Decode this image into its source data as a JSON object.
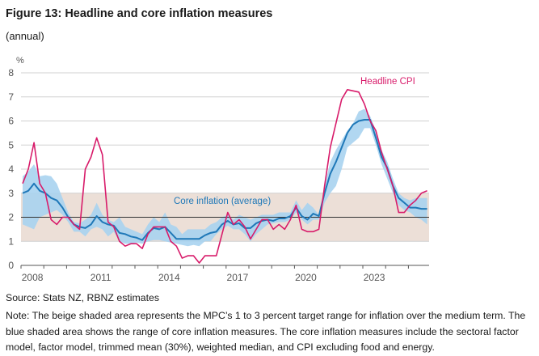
{
  "title": "Figure 13: Headline and core inflation measures",
  "subtitle": "(annual)",
  "source": "Source: Stats NZ, RBNZ estimates",
  "note": "Note: The beige shaded area represents the MPC’s 1 to 3 percent target range for inflation over the medium term. The blue shaded area shows the range of core inflation measures. The core inflation measures include the sectoral factor model, factor model, trimmed mean (30%), weighted median, and CPI excluding food and energy.",
  "colors": {
    "headline": "#d81b6a",
    "core": "#1f78b8",
    "band": "#a8d3ef",
    "target": "#ecdfd7",
    "grid": "#d0d0d0",
    "ref": "#333333"
  },
  "chart_data": {
    "type": "line",
    "ylabel": "%",
    "ylim": [
      0,
      8
    ],
    "yticks": [
      "0",
      "1",
      "2",
      "3",
      "4",
      "5",
      "6",
      "7",
      "8"
    ],
    "xtick_labels": [
      "2008",
      "2011",
      "2014",
      "2017",
      "2020",
      "2023"
    ],
    "xlim": [
      "2008Q1",
      "2025Q4"
    ],
    "grid": true,
    "target_range": [
      1,
      3
    ],
    "reference_line": 2,
    "annotations": {
      "headline": "Headline CPI",
      "core": "Core inflation (average)"
    },
    "x": [
      "2008Q1",
      "2008Q2",
      "2008Q3",
      "2008Q4",
      "2009Q1",
      "2009Q2",
      "2009Q3",
      "2009Q4",
      "2010Q1",
      "2010Q2",
      "2010Q3",
      "2010Q4",
      "2011Q1",
      "2011Q2",
      "2011Q3",
      "2011Q4",
      "2012Q1",
      "2012Q2",
      "2012Q3",
      "2012Q4",
      "2013Q1",
      "2013Q2",
      "2013Q3",
      "2013Q4",
      "2014Q1",
      "2014Q2",
      "2014Q3",
      "2014Q4",
      "2015Q1",
      "2015Q2",
      "2015Q3",
      "2015Q4",
      "2016Q1",
      "2016Q2",
      "2016Q3",
      "2016Q4",
      "2017Q1",
      "2017Q2",
      "2017Q3",
      "2017Q4",
      "2018Q1",
      "2018Q2",
      "2018Q3",
      "2018Q4",
      "2019Q1",
      "2019Q2",
      "2019Q3",
      "2019Q4",
      "2020Q1",
      "2020Q2",
      "2020Q3",
      "2020Q4",
      "2021Q1",
      "2021Q2",
      "2021Q3",
      "2021Q4",
      "2022Q1",
      "2022Q2",
      "2022Q3",
      "2022Q4",
      "2023Q1",
      "2023Q2",
      "2023Q3",
      "2023Q4",
      "2024Q1",
      "2024Q2",
      "2024Q3",
      "2024Q4",
      "2025Q1",
      "2025Q2",
      "2025Q3",
      "2025Q4"
    ],
    "series": [
      {
        "name": "Headline CPI",
        "values": [
          3.4,
          4.0,
          5.1,
          3.4,
          3.0,
          1.9,
          1.7,
          2.0,
          2.0,
          1.7,
          1.5,
          4.0,
          4.5,
          5.3,
          4.6,
          1.8,
          1.6,
          1.0,
          0.8,
          0.9,
          0.9,
          0.7,
          1.3,
          1.6,
          1.6,
          1.6,
          1.0,
          0.8,
          0.3,
          0.4,
          0.4,
          0.1,
          0.4,
          0.4,
          0.4,
          1.3,
          2.2,
          1.7,
          1.9,
          1.6,
          1.1,
          1.5,
          1.9,
          1.9,
          1.5,
          1.7,
          1.5,
          1.9,
          2.5,
          1.5,
          1.4,
          1.4,
          1.5,
          3.3,
          4.9,
          5.9,
          6.9,
          7.3,
          7.25,
          7.2,
          6.7,
          6.0,
          5.6,
          4.7,
          4.0,
          3.3,
          2.2,
          2.2,
          2.5,
          2.7,
          3.0,
          3.1
        ]
      },
      {
        "name": "Core inflation (average)",
        "values": [
          3.0,
          3.1,
          3.4,
          3.1,
          3.0,
          2.8,
          2.7,
          2.4,
          2.0,
          1.7,
          1.6,
          1.55,
          1.7,
          2.05,
          1.8,
          1.7,
          1.65,
          1.35,
          1.3,
          1.2,
          1.15,
          1.05,
          1.35,
          1.55,
          1.5,
          1.6,
          1.35,
          1.1,
          1.1,
          1.1,
          1.1,
          1.1,
          1.25,
          1.35,
          1.4,
          1.7,
          1.85,
          1.7,
          1.75,
          1.55,
          1.55,
          1.75,
          1.85,
          1.9,
          1.85,
          1.95,
          1.95,
          2.05,
          2.4,
          2.05,
          1.9,
          2.15,
          2.05,
          3.0,
          3.8,
          4.3,
          4.9,
          5.5,
          5.85,
          6.0,
          6.05,
          6.05,
          5.3,
          4.5,
          4.05,
          3.3,
          2.8,
          2.6,
          2.4,
          2.4,
          2.35,
          2.35
        ]
      }
    ],
    "core_range": {
      "low": [
        1.7,
        1.6,
        1.5,
        2.0,
        2.1,
        2.2,
        2.3,
        2.1,
        1.8,
        1.4,
        1.4,
        1.2,
        1.5,
        1.6,
        1.5,
        1.2,
        1.4,
        1.0,
        0.9,
        0.9,
        0.95,
        0.9,
        1.0,
        1.05,
        1.05,
        1.0,
        0.95,
        0.9,
        0.85,
        0.8,
        0.85,
        0.8,
        1.0,
        1.0,
        1.3,
        1.5,
        1.65,
        1.5,
        1.5,
        1.3,
        1.0,
        1.3,
        1.5,
        1.7,
        1.75,
        1.8,
        1.8,
        1.9,
        2.2,
        1.9,
        1.7,
        1.9,
        1.9,
        2.6,
        3.0,
        3.3,
        4.0,
        4.9,
        5.1,
        5.3,
        5.7,
        5.7,
        5.0,
        4.2,
        3.6,
        3.0,
        2.5,
        2.3,
        2.2,
        2.0,
        1.9,
        1.7
      ],
      "high": [
        3.7,
        3.9,
        4.2,
        3.7,
        3.75,
        3.7,
        3.4,
        2.8,
        2.2,
        1.8,
        1.75,
        1.9,
        2.1,
        2.6,
        2.1,
        1.9,
        1.8,
        2.0,
        1.6,
        1.5,
        1.4,
        1.3,
        1.7,
        2.0,
        1.8,
        2.2,
        1.7,
        1.6,
        1.3,
        1.5,
        1.5,
        1.5,
        1.5,
        1.7,
        1.8,
        2.0,
        2.1,
        1.9,
        2.1,
        2.0,
        1.9,
        2.0,
        2.1,
        2.1,
        2.1,
        2.2,
        2.2,
        2.2,
        2.7,
        2.3,
        2.6,
        2.4,
        2.1,
        3.3,
        4.3,
        4.8,
        5.2,
        5.6,
        5.9,
        6.4,
        6.5,
        6.2,
        5.6,
        4.8,
        4.3,
        3.6,
        3.0,
        2.8,
        2.7,
        2.8,
        2.8,
        2.8
      ]
    }
  }
}
